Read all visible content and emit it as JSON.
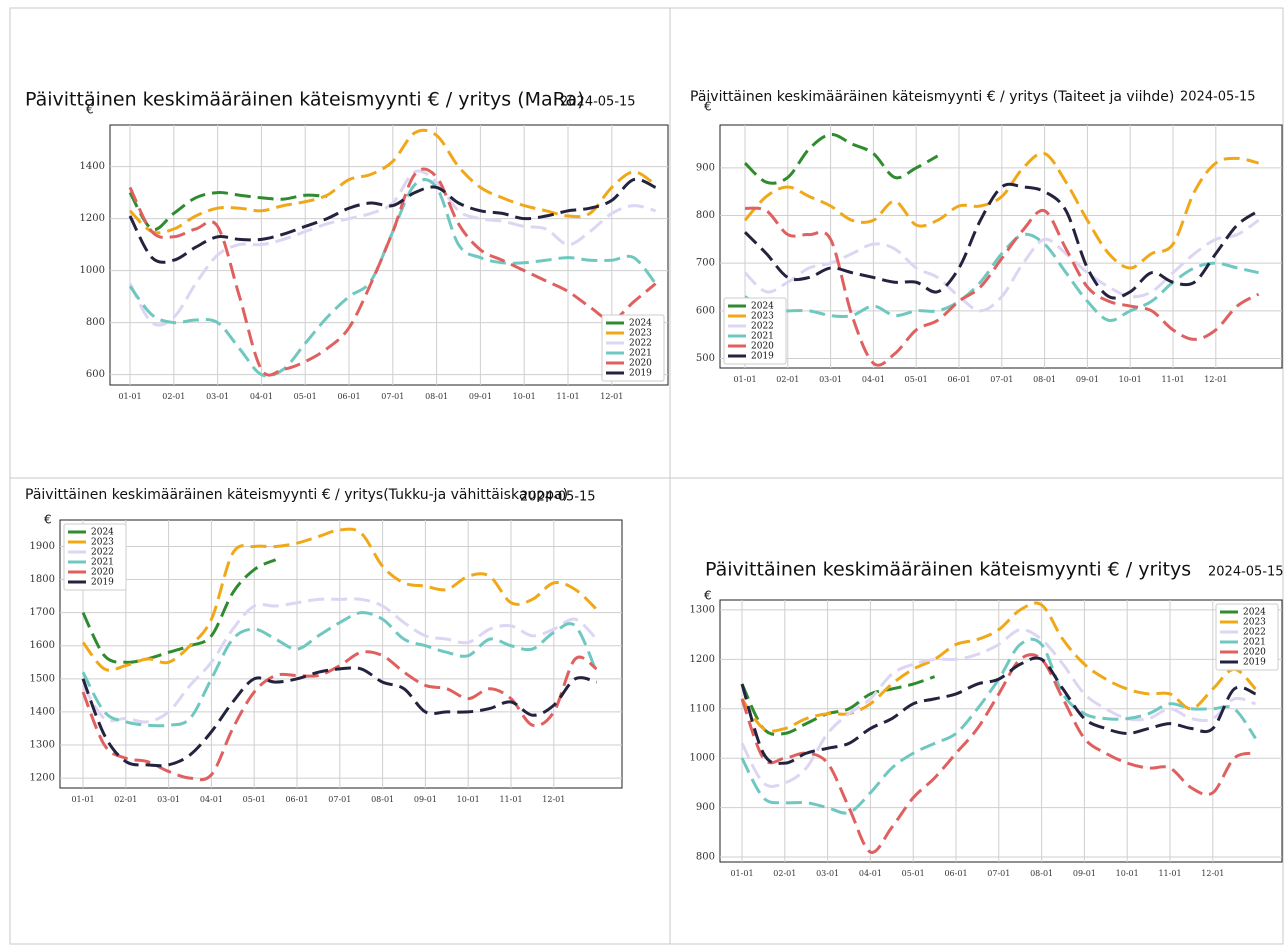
{
  "chart_data": [
    {
      "type": "line",
      "title": "Päivittäinen keskimääräinen käteismyynti € / yritys (MaRa)",
      "date": "2024-05-15",
      "y_label": "€",
      "categories": [
        "01-01",
        null,
        "02-01",
        null,
        "03-01",
        null,
        "04-01",
        null,
        "05-01",
        null,
        "06-01",
        null,
        "07-01",
        null,
        "08-01",
        null,
        "09-01",
        null,
        "10-01",
        null,
        "11-01",
        null,
        "12-01",
        null,
        null
      ],
      "ylim": [
        560,
        1560
      ],
      "yticks": [
        600,
        800,
        1000,
        1200,
        1400
      ],
      "grid": true,
      "legend": "lower right",
      "series": [
        {
          "name": "2024",
          "color": "#2e8b2e",
          "values": [
            1300,
            1160,
            1220,
            1280,
            1300,
            1290,
            1280,
            1275,
            1290,
            1285,
            null,
            null,
            null,
            null,
            null,
            null,
            null,
            null,
            null,
            null,
            null,
            null,
            null,
            null,
            null
          ]
        },
        {
          "name": "2023",
          "color": "#f0a818",
          "values": [
            1230,
            1150,
            1160,
            1210,
            1240,
            1240,
            1230,
            1250,
            1265,
            1290,
            1350,
            1370,
            1420,
            1530,
            1520,
            1400,
            1320,
            1280,
            1250,
            1230,
            1210,
            1220,
            1320,
            1380,
            1330
          ]
        },
        {
          "name": "2022",
          "color": "#ddd5f3",
          "values": [
            950,
            800,
            820,
            950,
            1060,
            1100,
            1100,
            1120,
            1150,
            1180,
            1200,
            1220,
            1260,
            1380,
            1340,
            1230,
            1200,
            1190,
            1170,
            1160,
            1100,
            1150,
            1220,
            1250,
            1230
          ]
        },
        {
          "name": "2021",
          "color": "#6fc8c0",
          "values": [
            940,
            830,
            800,
            810,
            800,
            700,
            600,
            620,
            720,
            820,
            900,
            960,
            1150,
            1330,
            1320,
            1100,
            1050,
            1030,
            1030,
            1040,
            1050,
            1040,
            1040,
            1050,
            950
          ]
        },
        {
          "name": "2020",
          "color": "#e06060",
          "values": [
            1320,
            1150,
            1130,
            1160,
            1170,
            900,
            620,
            620,
            650,
            700,
            780,
            950,
            1150,
            1370,
            1360,
            1180,
            1080,
            1040,
            1000,
            960,
            920,
            860,
            810,
            880,
            950
          ]
        },
        {
          "name": "2019",
          "color": "#23233f",
          "values": [
            1210,
            1050,
            1040,
            1090,
            1130,
            1120,
            1120,
            1140,
            1170,
            1200,
            1240,
            1260,
            1250,
            1300,
            1320,
            1260,
            1230,
            1220,
            1200,
            1210,
            1230,
            1240,
            1270,
            1350,
            1320
          ]
        }
      ]
    },
    {
      "type": "line",
      "title": "Päivittäinen keskimääräinen käteismyynti € / yritys (Taiteet ja viihde)",
      "date": "2024-05-15",
      "y_label": "€",
      "categories": [
        "01-01",
        null,
        "02-01",
        null,
        "03-01",
        null,
        "04-01",
        null,
        "05-01",
        null,
        "06-01",
        null,
        "07-01",
        null,
        "08-01",
        null,
        "09-01",
        null,
        "10-01",
        null,
        "11-01",
        null,
        "12-01",
        null,
        null
      ],
      "ylim": [
        480,
        990
      ],
      "yticks": [
        500,
        600,
        700,
        800,
        900
      ],
      "grid": true,
      "legend": "lower left",
      "series": [
        {
          "name": "2024",
          "color": "#2e8b2e",
          "values": [
            910,
            870,
            880,
            940,
            970,
            950,
            930,
            880,
            900,
            925,
            null,
            null,
            null,
            null,
            null,
            null,
            null,
            null,
            null,
            null,
            null,
            null,
            null,
            null,
            null
          ]
        },
        {
          "name": "2023",
          "color": "#f0a818",
          "values": [
            790,
            840,
            860,
            840,
            820,
            790,
            790,
            830,
            780,
            790,
            820,
            820,
            840,
            900,
            930,
            870,
            790,
            720,
            690,
            720,
            740,
            850,
            910,
            920,
            910
          ]
        },
        {
          "name": "2022",
          "color": "#ddd5f3",
          "values": [
            680,
            640,
            660,
            690,
            700,
            720,
            740,
            730,
            690,
            670,
            630,
            600,
            630,
            700,
            750,
            720,
            680,
            650,
            630,
            640,
            680,
            720,
            750,
            760,
            790
          ]
        },
        {
          "name": "2021",
          "color": "#6fc8c0",
          "values": [
            630,
            600,
            600,
            600,
            590,
            590,
            610,
            590,
            600,
            600,
            620,
            660,
            720,
            760,
            740,
            680,
            620,
            580,
            600,
            620,
            660,
            690,
            700,
            690,
            680
          ]
        },
        {
          "name": "2020",
          "color": "#e06060",
          "values": [
            815,
            810,
            760,
            760,
            750,
            590,
            490,
            510,
            560,
            580,
            620,
            650,
            710,
            770,
            810,
            730,
            650,
            620,
            610,
            600,
            560,
            540,
            560,
            610,
            635
          ]
        },
        {
          "name": "2019",
          "color": "#23233f",
          "values": [
            765,
            720,
            670,
            670,
            690,
            680,
            670,
            660,
            660,
            640,
            690,
            790,
            860,
            860,
            850,
            810,
            690,
            630,
            640,
            680,
            660,
            660,
            720,
            780,
            810
          ]
        }
      ]
    },
    {
      "type": "line",
      "title": "Päivittäinen keskimääräinen käteismyynti € / yritys(Tukku-ja vähittäiskauppa)",
      "date": "2024-05-15",
      "y_label": "€",
      "categories": [
        "01-01",
        null,
        "02-01",
        null,
        "03-01",
        null,
        "04-01",
        null,
        "05-01",
        null,
        "06-01",
        null,
        "07-01",
        null,
        "08-01",
        null,
        "09-01",
        null,
        "10-01",
        null,
        "11-01",
        null,
        "12-01",
        null,
        null
      ],
      "ylim": [
        1170,
        1980
      ],
      "yticks": [
        1200,
        1300,
        1400,
        1500,
        1600,
        1700,
        1800,
        1900
      ],
      "grid": true,
      "legend": "upper left",
      "series": [
        {
          "name": "2024",
          "color": "#2e8b2e",
          "values": [
            1700,
            1570,
            1550,
            1560,
            1580,
            1600,
            1630,
            1760,
            1830,
            1860,
            null,
            null,
            null,
            null,
            null,
            null,
            null,
            null,
            null,
            null,
            null,
            null,
            null,
            null,
            null
          ]
        },
        {
          "name": "2023",
          "color": "#f0a818",
          "values": [
            1610,
            1530,
            1540,
            1560,
            1550,
            1600,
            1680,
            1880,
            1900,
            1900,
            1910,
            1930,
            1950,
            1940,
            1840,
            1790,
            1780,
            1770,
            1810,
            1810,
            1730,
            1740,
            1790,
            1770,
            1710
          ]
        },
        {
          "name": "2022",
          "color": "#ddd5f3",
          "values": [
            1480,
            1380,
            1380,
            1370,
            1400,
            1480,
            1550,
            1650,
            1720,
            1720,
            1730,
            1740,
            1740,
            1740,
            1720,
            1670,
            1630,
            1620,
            1610,
            1650,
            1660,
            1630,
            1650,
            1680,
            1620
          ]
        },
        {
          "name": "2021",
          "color": "#6fc8c0",
          "values": [
            1520,
            1400,
            1370,
            1360,
            1360,
            1380,
            1500,
            1620,
            1650,
            1620,
            1590,
            1630,
            1670,
            1700,
            1680,
            1620,
            1600,
            1580,
            1570,
            1620,
            1600,
            1590,
            1640,
            1660,
            1520
          ]
        },
        {
          "name": "2020",
          "color": "#e06060",
          "values": [
            1460,
            1300,
            1260,
            1250,
            1220,
            1200,
            1210,
            1350,
            1460,
            1510,
            1510,
            1510,
            1540,
            1580,
            1570,
            1520,
            1480,
            1470,
            1440,
            1470,
            1440,
            1360,
            1400,
            1560,
            1530
          ]
        },
        {
          "name": "2019",
          "color": "#23233f",
          "values": [
            1500,
            1330,
            1250,
            1240,
            1240,
            1270,
            1340,
            1430,
            1500,
            1490,
            1500,
            1520,
            1530,
            1530,
            1490,
            1470,
            1400,
            1400,
            1400,
            1410,
            1430,
            1390,
            1420,
            1500,
            1490
          ]
        }
      ]
    },
    {
      "type": "line",
      "title": "Päivittäinen keskimääräinen käteismyynti € / yritys",
      "date": "2024-05-15",
      "y_label": "€",
      "categories": [
        "01-01",
        null,
        "02-01",
        null,
        "03-01",
        null,
        "04-01",
        null,
        "05-01",
        null,
        "06-01",
        null,
        "07-01",
        null,
        "08-01",
        null,
        "09-01",
        null,
        "10-01",
        null,
        "11-01",
        null,
        "12-01",
        null,
        null
      ],
      "ylim": [
        790,
        1320
      ],
      "yticks": [
        800,
        900,
        1000,
        1100,
        1200,
        1300
      ],
      "grid": true,
      "legend": "upper right",
      "series": [
        {
          "name": "2024",
          "color": "#2e8b2e",
          "values": [
            1150,
            1060,
            1050,
            1070,
            1090,
            1100,
            1130,
            1140,
            1150,
            1165,
            null,
            null,
            null,
            null,
            null,
            null,
            null,
            null,
            null,
            null,
            null,
            null,
            null,
            null,
            null
          ]
        },
        {
          "name": "2023",
          "color": "#f0a818",
          "values": [
            1120,
            1060,
            1060,
            1080,
            1090,
            1090,
            1110,
            1150,
            1180,
            1200,
            1230,
            1240,
            1260,
            1300,
            1310,
            1240,
            1190,
            1160,
            1140,
            1130,
            1130,
            1100,
            1140,
            1180,
            1140
          ]
        },
        {
          "name": "2022",
          "color": "#ddd5f3",
          "values": [
            1030,
            950,
            950,
            980,
            1050,
            1090,
            1120,
            1170,
            1190,
            1200,
            1200,
            1210,
            1230,
            1260,
            1240,
            1190,
            1130,
            1100,
            1080,
            1080,
            1100,
            1080,
            1080,
            1120,
            1110
          ]
        },
        {
          "name": "2021",
          "color": "#6fc8c0",
          "values": [
            1000,
            920,
            910,
            910,
            900,
            890,
            930,
            980,
            1010,
            1030,
            1050,
            1100,
            1160,
            1230,
            1230,
            1130,
            1090,
            1080,
            1080,
            1090,
            1110,
            1100,
            1100,
            1100,
            1040
          ]
        },
        {
          "name": "2020",
          "color": "#e06060",
          "values": [
            1120,
            1000,
            1000,
            1010,
            990,
            900,
            810,
            860,
            920,
            960,
            1010,
            1060,
            1130,
            1200,
            1200,
            1120,
            1040,
            1010,
            990,
            980,
            980,
            940,
            930,
            1000,
            1010
          ]
        },
        {
          "name": "2019",
          "color": "#23233f",
          "values": [
            1150,
            1010,
            990,
            1010,
            1020,
            1030,
            1060,
            1080,
            1110,
            1120,
            1130,
            1150,
            1160,
            1190,
            1200,
            1140,
            1080,
            1060,
            1050,
            1060,
            1070,
            1060,
            1060,
            1140,
            1130
          ]
        }
      ]
    }
  ]
}
